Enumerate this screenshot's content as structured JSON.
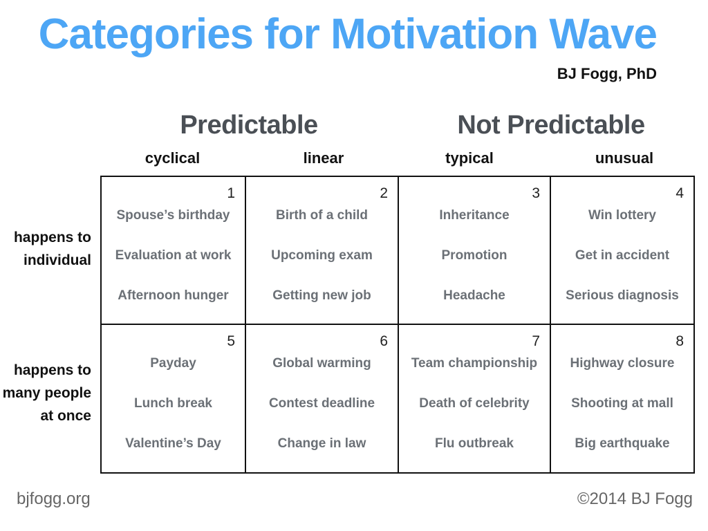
{
  "title": "Categories for Motivation Wave",
  "author": "BJ Fogg, PhD",
  "colors": {
    "title": "#4da6f5",
    "group_heading": "#4a4f55",
    "item_text": "#6b7076"
  },
  "groups": [
    {
      "label": "Predictable"
    },
    {
      "label": "Not Predictable"
    }
  ],
  "columns": [
    {
      "label": "cyclical"
    },
    {
      "label": "linear"
    },
    {
      "label": "typical"
    },
    {
      "label": "unusual"
    }
  ],
  "rows": [
    {
      "label_line1": "happens to",
      "label_line2": "individual",
      "label_line3": ""
    },
    {
      "label_line1": "happens to",
      "label_line2": "many people",
      "label_line3": "at once"
    }
  ],
  "cells": [
    {
      "number": "1",
      "items": [
        "Spouse’s birthday",
        "Evaluation at work",
        "Afternoon hunger"
      ]
    },
    {
      "number": "2",
      "items": [
        "Birth of a child",
        "Upcoming exam",
        "Getting new job"
      ]
    },
    {
      "number": "3",
      "items": [
        "Inheritance",
        "Promotion",
        "Headache"
      ]
    },
    {
      "number": "4",
      "items": [
        "Win lottery",
        "Get in accident",
        "Serious diagnosis"
      ]
    },
    {
      "number": "5",
      "items": [
        "Payday",
        "Lunch break",
        "Valentine’s Day"
      ]
    },
    {
      "number": "6",
      "items": [
        "Global warming",
        "Contest deadline",
        "Change in law"
      ]
    },
    {
      "number": "7",
      "items": [
        "Team championship",
        "Death of celebrity",
        "Flu outbreak"
      ]
    },
    {
      "number": "8",
      "items": [
        "Highway closure",
        "Shooting at mall",
        "Big earthquake"
      ]
    }
  ],
  "footer": {
    "left": "bjfogg.org",
    "right": "©2014 BJ Fogg"
  }
}
